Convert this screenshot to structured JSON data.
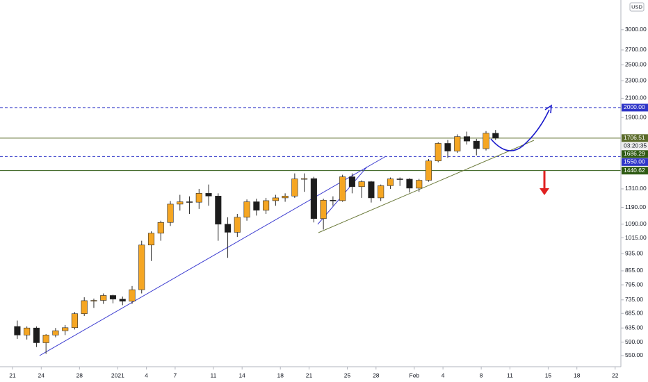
{
  "chart_data": {
    "type": "candlestick",
    "currency": "USD",
    "log_scale": true,
    "up_color": "#f5a623",
    "down_color": "#1c1c1c",
    "x": [
      0,
      1,
      2,
      3,
      4,
      5,
      6,
      7,
      8,
      9,
      10,
      11,
      12,
      13,
      14,
      15,
      16,
      17,
      18,
      19,
      20,
      21,
      22,
      23,
      24,
      25,
      26,
      27,
      28,
      29,
      30,
      31,
      32,
      33,
      34,
      35,
      36,
      37,
      38,
      39,
      40,
      41,
      42,
      43,
      44,
      45,
      46,
      47,
      48,
      49,
      50
    ],
    "open": [
      640,
      612,
      635,
      588,
      612,
      626,
      636,
      684,
      732,
      733,
      752,
      738,
      730,
      775,
      978,
      1040,
      1100,
      1210,
      1225,
      1222,
      1280,
      1262,
      1090,
      1045,
      1130,
      1225,
      1172,
      1232,
      1250,
      1262,
      1380,
      1382,
      1122,
      1235,
      1232,
      1395,
      1325,
      1360,
      1250,
      1332,
      1380,
      1378,
      1315,
      1370,
      1515,
      1660,
      1595,
      1720,
      1680,
      1615,
      1750
    ],
    "high": [
      660,
      640,
      640,
      615,
      635,
      645,
      690,
      745,
      740,
      760,
      755,
      748,
      790,
      1000,
      1050,
      1110,
      1230,
      1270,
      1260,
      1310,
      1340,
      1280,
      1130,
      1150,
      1240,
      1245,
      1250,
      1270,
      1280,
      1420,
      1420,
      1395,
      1245,
      1260,
      1410,
      1420,
      1370,
      1365,
      1340,
      1390,
      1390,
      1385,
      1380,
      1530,
      1670,
      1690,
      1740,
      1765,
      1700,
      1770,
      1780
    ],
    "low": [
      600,
      598,
      575,
      555,
      605,
      612,
      630,
      676,
      705,
      720,
      722,
      715,
      720,
      760,
      900,
      1000,
      1080,
      1170,
      1150,
      1180,
      1200,
      1000,
      915,
      1020,
      1110,
      1140,
      1150,
      1200,
      1225,
      1250,
      1290,
      1100,
      1060,
      1200,
      1225,
      1280,
      1250,
      1220,
      1230,
      1310,
      1330,
      1285,
      1290,
      1360,
      1505,
      1540,
      1580,
      1650,
      1560,
      1600,
      1690
    ],
    "close": [
      612,
      635,
      588,
      612,
      626,
      636,
      684,
      732,
      733,
      752,
      738,
      730,
      775,
      978,
      1040,
      1100,
      1210,
      1225,
      1222,
      1280,
      1262,
      1090,
      1045,
      1130,
      1225,
      1172,
      1232,
      1250,
      1262,
      1380,
      1382,
      1122,
      1235,
      1232,
      1395,
      1325,
      1360,
      1250,
      1332,
      1380,
      1378,
      1315,
      1370,
      1515,
      1660,
      1595,
      1720,
      1680,
      1615,
      1750,
      1706.51
    ],
    "xlim": [
      -1.31,
      63.6
    ],
    "xticks": [
      {
        "value": 0,
        "label": "21"
      },
      {
        "value": 3,
        "label": "24"
      },
      {
        "value": 7,
        "label": "28"
      },
      {
        "value": 11,
        "label": "2021"
      },
      {
        "value": 14,
        "label": "4"
      },
      {
        "value": 17,
        "label": "7"
      },
      {
        "value": 21,
        "label": "11"
      },
      {
        "value": 24,
        "label": "14"
      },
      {
        "value": 28,
        "label": "18"
      },
      {
        "value": 31,
        "label": "21"
      },
      {
        "value": 35,
        "label": "25"
      },
      {
        "value": 38,
        "label": "28"
      },
      {
        "value": 42,
        "label": "Feb"
      },
      {
        "value": 45,
        "label": "4"
      },
      {
        "value": 49,
        "label": "8"
      },
      {
        "value": 52,
        "label": "11"
      },
      {
        "value": 56,
        "label": "15"
      },
      {
        "value": 59,
        "label": "18"
      },
      {
        "value": 63,
        "label": "22"
      }
    ],
    "ylim": [
      519,
      3502
    ],
    "yticks": [
      {
        "value": 3000,
        "label": "3000.00"
      },
      {
        "value": 2700,
        "label": "2700.00"
      },
      {
        "value": 2500,
        "label": "2500.00"
      },
      {
        "value": 2300,
        "label": "2300.00"
      },
      {
        "value": 2100,
        "label": "2100.00"
      },
      {
        "value": 1900,
        "label": "1900.00"
      },
      {
        "value": 1310,
        "label": "1310.00"
      },
      {
        "value": 1190,
        "label": "1190.00"
      },
      {
        "value": 1090,
        "label": "1090.00"
      },
      {
        "value": 1015,
        "label": "1015.00"
      },
      {
        "value": 935,
        "label": "935.00"
      },
      {
        "value": 855,
        "label": "855.00"
      },
      {
        "value": 795,
        "label": "795.00"
      },
      {
        "value": 735,
        "label": "735.00"
      },
      {
        "value": 685,
        "label": "685.00"
      },
      {
        "value": 635,
        "label": "635.00"
      },
      {
        "value": 590,
        "label": "590.00"
      },
      {
        "value": 550,
        "label": "550.00"
      }
    ],
    "price_lines": [
      {
        "value": 2000,
        "label": "2000.00",
        "style": "dashed",
        "color": "#2f35c8"
      },
      {
        "value": 1706.51,
        "label": "1706.51",
        "style": "solid",
        "color": "#5b6b2a"
      },
      {
        "value": 1550,
        "label": "1550.00",
        "style": "dashed",
        "color": "#2f35c8"
      },
      {
        "value": 1440.62,
        "label": "1440.62",
        "style": "solid",
        "color": "#2e5a12"
      }
    ],
    "extra_labels": [
      {
        "value": 1706.51,
        "label": "03:20:35",
        "color": "#eeeeee"
      },
      {
        "value": 1686.29,
        "label": "1686.29",
        "color": "#2e5a12"
      }
    ]
  }
}
